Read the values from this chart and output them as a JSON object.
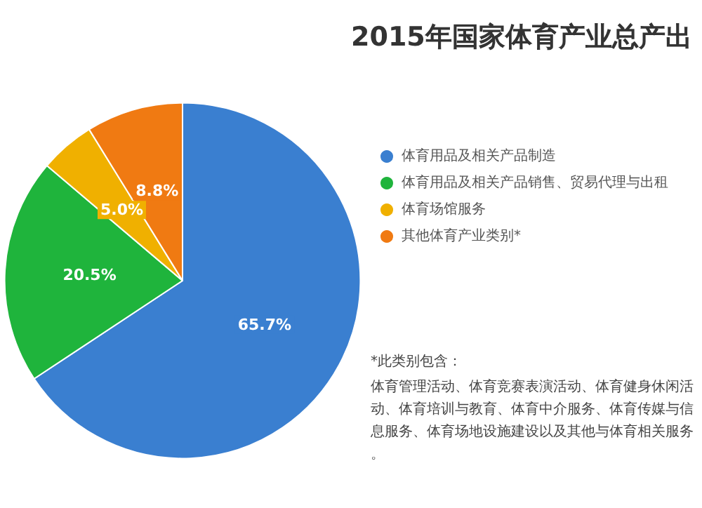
{
  "chart_data": {
    "type": "pie",
    "title": "2015年国家体育产业总产出",
    "categories": [
      "体育用品及相关产品制造",
      "体育用品及相关产品销售、贸易代理与出租",
      "体育场馆服务",
      "其他体育产业类别*"
    ],
    "values": [
      65.7,
      20.5,
      5.0,
      8.8
    ],
    "value_labels": [
      "65.7%",
      "20.5%",
      "5.0%",
      "8.8%"
    ],
    "colors": [
      "#3a7fd0",
      "#1fb43c",
      "#f0b000",
      "#f07a12"
    ],
    "legend": "right",
    "annotations": [
      "*此类别包含：",
      "体育管理活动、体育竞赛表演活动、体育健身休闲活动、体育培训与教育、体育中介服务、体育传媒与信息服务、体育场地设施建设以及其他与体育相关服务。"
    ]
  }
}
